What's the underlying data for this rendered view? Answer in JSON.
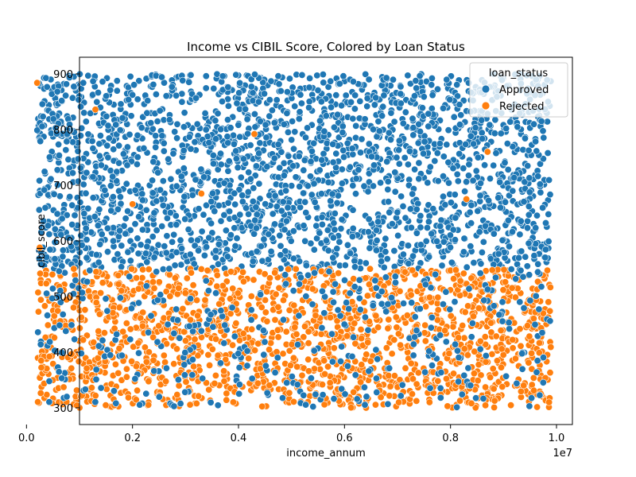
{
  "chart_data": {
    "type": "scatter",
    "title": "Income vs CIBIL Score, Colored by Loan Status",
    "xlabel": "income_annum",
    "ylabel": "cibil_score",
    "x_offset_label": "1e7",
    "xlim": [
      1000000,
      10300000
    ],
    "ylim": [
      270,
      930
    ],
    "x_ticks": [
      0.0,
      0.2,
      0.4,
      0.6,
      0.8,
      1.0
    ],
    "x_tick_labels": [
      "0.0",
      "0.2",
      "0.4",
      "0.6",
      "0.8",
      "1.0"
    ],
    "y_ticks": [
      300,
      400,
      500,
      600,
      700,
      800,
      900
    ],
    "y_tick_labels": [
      "300",
      "400",
      "500",
      "600",
      "700",
      "800",
      "900"
    ],
    "grid": false,
    "legend": {
      "title": "loan_status",
      "placement": "top-right",
      "entries": [
        "Approved",
        "Rejected"
      ]
    },
    "colors": {
      "Approved": "#1f77b4",
      "Rejected": "#ff7f0e"
    },
    "series": [
      {
        "name": "Approved",
        "x_range": [
          200000,
          9900000
        ],
        "y_range": [
          300,
          900
        ],
        "dense_y_range": [
          550,
          900
        ],
        "approx_count": 2650
      },
      {
        "name": "Rejected",
        "x_range": [
          200000,
          9900000
        ],
        "y_range": [
          300,
          550
        ],
        "approx_count": 1620,
        "outliers": [
          {
            "x": 1300000,
            "y": 836
          },
          {
            "x": 4300000,
            "y": 792
          },
          {
            "x": 8700000,
            "y": 760
          },
          {
            "x": 2000000,
            "y": 666
          },
          {
            "x": 3300000,
            "y": 685
          },
          {
            "x": 8300000,
            "y": 675
          },
          {
            "x": 250000,
            "y": 588
          },
          {
            "x": 200000,
            "y": 884
          }
        ]
      }
    ]
  }
}
